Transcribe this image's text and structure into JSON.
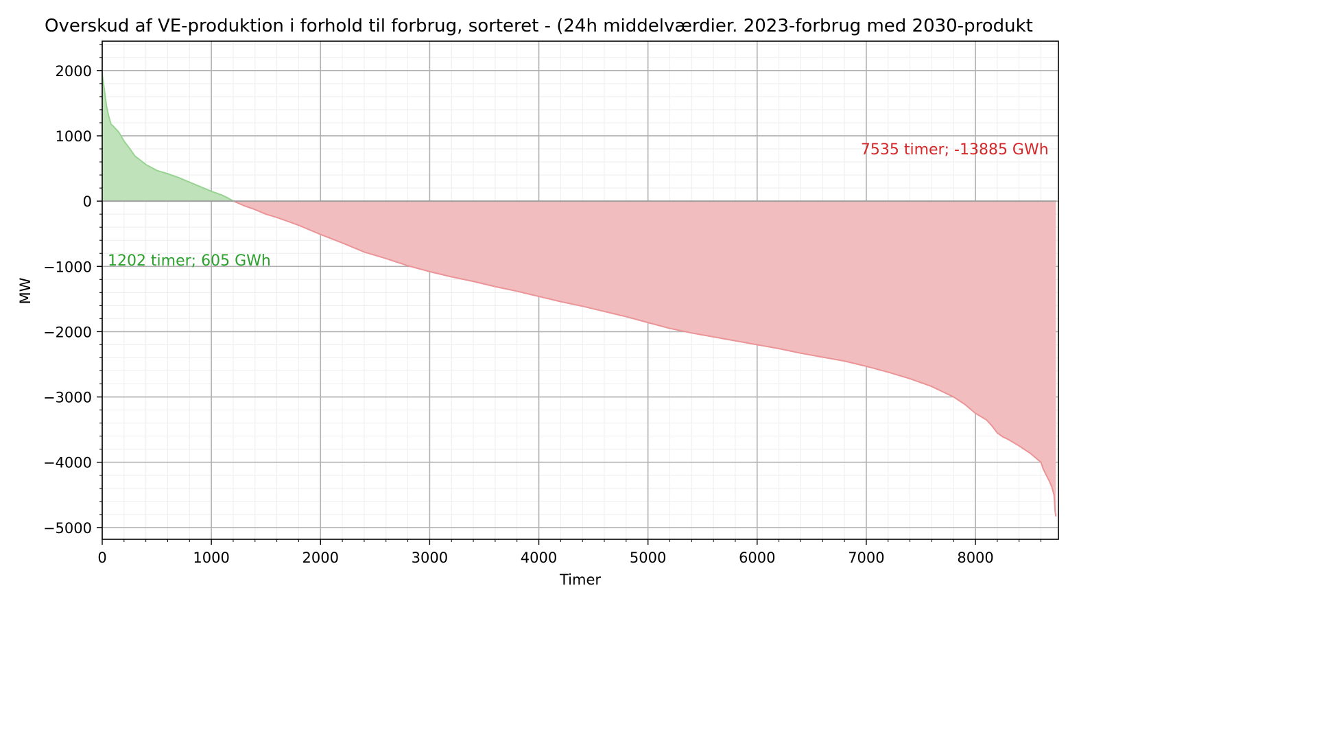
{
  "chart_data": {
    "type": "area",
    "title": "Overskud af VE-produktion i forhold til forbrug, sorteret - (24h middelværdier. 2023-forbrug med 2030-produkt",
    "xlabel": "Timer",
    "ylabel": "MW",
    "xlim": [
      0,
      8760
    ],
    "ylim": [
      -5180,
      2450
    ],
    "x_ticks": [
      0,
      1000,
      2000,
      3000,
      4000,
      5000,
      6000,
      7000,
      8000
    ],
    "y_ticks": [
      2000,
      1000,
      0,
      -1000,
      -2000,
      -3000,
      -4000,
      -5000
    ],
    "grid": true,
    "legend": "none",
    "colors": {
      "positive_fill": "#bfe2bb",
      "positive_line": "#97d391",
      "negative_fill": "#f1bdbf",
      "negative_line": "#eb9497",
      "positive_label": "#2ca02c",
      "negative_label": "#d62728",
      "zero_line": "#a0a0a0",
      "major_grid": "#b0b0b0",
      "minor_grid": "#eeeeee"
    },
    "annotations": [
      {
        "text": "1202 timer; 605 GWh",
        "x": 50,
        "y": -900,
        "anchor": "start",
        "color_key": "positive_label"
      },
      {
        "text": "7535 timer; -13885 GWh",
        "x": 8670,
        "y": 800,
        "anchor": "end",
        "color_key": "negative_label"
      }
    ],
    "series": [
      {
        "x": [
          0,
          20,
          40,
          60,
          80,
          100,
          150,
          200,
          250,
          300,
          400,
          500,
          600,
          700,
          800,
          900,
          1000,
          1100,
          1150,
          1202,
          1300,
          1400,
          1500,
          1600,
          1700,
          1800,
          1900,
          2000,
          2200,
          2400,
          2600,
          2800,
          3000,
          3200,
          3400,
          3600,
          3800,
          4000,
          4200,
          4400,
          4600,
          4800,
          5000,
          5200,
          5400,
          5600,
          5800,
          6000,
          6200,
          6400,
          6600,
          6800,
          7000,
          7200,
          7400,
          7600,
          7800,
          7900,
          8000,
          8100,
          8150,
          8200,
          8250,
          8300,
          8400,
          8500,
          8600,
          8620,
          8650,
          8680,
          8700,
          8720,
          8730,
          8737
        ],
        "y": [
          1950,
          1700,
          1450,
          1300,
          1180,
          1150,
          1060,
          920,
          810,
          690,
          560,
          470,
          420,
          360,
          290,
          220,
          150,
          90,
          50,
          0,
          -70,
          -130,
          -200,
          -250,
          -310,
          -370,
          -440,
          -510,
          -640,
          -780,
          -880,
          -990,
          -1080,
          -1160,
          -1230,
          -1310,
          -1380,
          -1460,
          -1540,
          -1610,
          -1690,
          -1770,
          -1860,
          -1950,
          -2020,
          -2080,
          -2140,
          -2200,
          -2260,
          -2330,
          -2390,
          -2450,
          -2530,
          -2620,
          -2720,
          -2840,
          -3000,
          -3110,
          -3250,
          -3350,
          -3440,
          -3550,
          -3610,
          -3650,
          -3750,
          -3860,
          -4000,
          -4100,
          -4200,
          -4300,
          -4380,
          -4500,
          -4750,
          -4830
        ]
      }
    ]
  }
}
